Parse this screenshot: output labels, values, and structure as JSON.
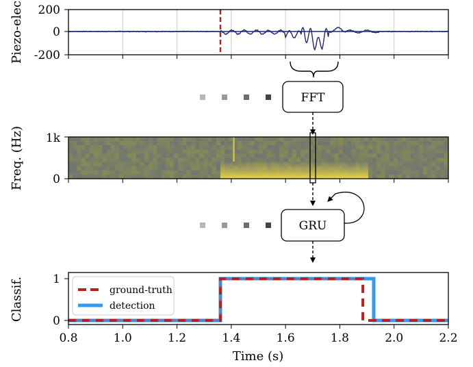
{
  "panels": {
    "signal": {
      "ylabel": "Piezo-elec",
      "yticks": [
        200,
        0,
        -200
      ],
      "ylim": [
        -200,
        200
      ],
      "xlim": [
        0.8,
        2.2
      ],
      "xticks": [
        0.8,
        1.0,
        1.2,
        1.4,
        1.6,
        1.8,
        2.0,
        2.2
      ],
      "onset_marker": 1.36,
      "line_color": "#1f2670",
      "marker_color": "#b22222"
    },
    "spectrogram": {
      "ylabel": "Freq. (Hz)",
      "yticks": [
        "1k",
        "0"
      ],
      "highlight_time": 1.7
    },
    "classifier": {
      "ylabel": "Classif.",
      "yticks": [
        1,
        0
      ],
      "xlabel": "Time (s)",
      "xtick_labels": [
        "0.8",
        "1.0",
        "1.2",
        "1.4",
        "1.6",
        "1.8",
        "2.0",
        "2.2"
      ],
      "xlim": [
        0.8,
        2.2
      ]
    }
  },
  "boxes": {
    "fft": "FFT",
    "gru": "GRU"
  },
  "chart_data": [
    {
      "type": "line",
      "panel": "signal",
      "ylabel": "Piezo-elec",
      "xlim": [
        0.8,
        2.2
      ],
      "ylim": [
        -200,
        200
      ],
      "features": [
        {
          "x": 1.36,
          "kind": "vertical dashed marker"
        },
        {
          "x_range": [
            1.36,
            1.6
          ],
          "amplitude": 25
        },
        {
          "x_range": [
            1.6,
            1.8
          ],
          "min": -185
        }
      ]
    },
    {
      "type": "heatmap",
      "panel": "spectrogram",
      "ylabel": "Freq. (Hz)",
      "ylim": [
        0,
        1000
      ],
      "active_range": [
        1.36,
        1.92
      ]
    },
    {
      "type": "line",
      "panel": "classifier",
      "ylabel": "Classif.",
      "xlabel": "Time (s)",
      "xlim": [
        0.8,
        2.2
      ],
      "ylim": [
        0,
        1
      ],
      "series": [
        {
          "name": "ground-truth",
          "x": [
            0.8,
            1.36,
            1.36,
            1.885,
            1.885,
            2.2
          ],
          "y": [
            0,
            0,
            1,
            1,
            0,
            0
          ],
          "color": "#b22222",
          "style": "dashed"
        },
        {
          "name": "detection",
          "x": [
            0.8,
            1.36,
            1.36,
            1.925,
            1.925,
            2.2
          ],
          "y": [
            0,
            0,
            1,
            1,
            0,
            0
          ],
          "color": "#3399ee",
          "style": "solid"
        }
      ]
    }
  ]
}
